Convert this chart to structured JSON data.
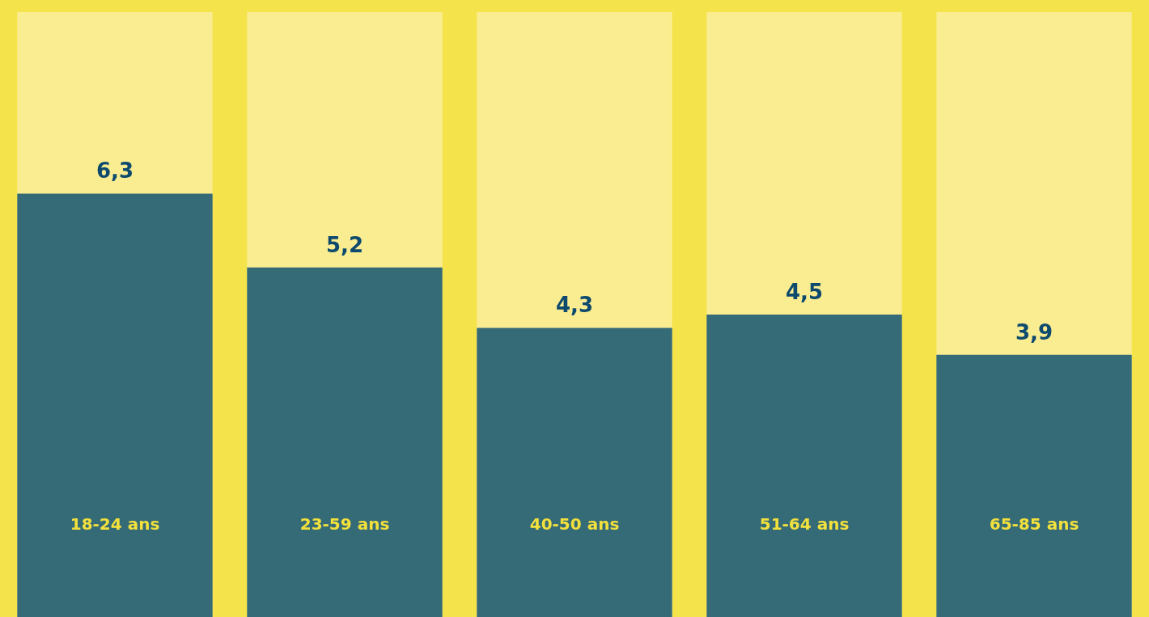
{
  "chart_data": {
    "type": "bar",
    "categories": [
      "18-24 ans",
      "23-59 ans",
      "40-50 ans",
      "51-64 ans",
      "65-85 ans"
    ],
    "values": [
      6.3,
      5.2,
      4.3,
      4.5,
      3.9
    ],
    "value_labels": [
      "6,3",
      "5,2",
      "4,3",
      "4,5",
      "3,9"
    ],
    "color": "#356a77",
    "bands": [
      {
        "axis": "x",
        "from": "18-24 ans",
        "to": "18-24 ans",
        "color": "#faed91"
      },
      {
        "axis": "x",
        "from": "23-59 ans",
        "to": "23-59 ans",
        "color": "#faed91"
      },
      {
        "axis": "x",
        "from": "40-50 ans",
        "to": "40-50 ans",
        "color": "#faed91"
      },
      {
        "axis": "x",
        "from": "51-64 ans",
        "to": "51-64 ans",
        "color": "#faed91"
      },
      {
        "axis": "x",
        "from": "65-85 ans",
        "to": "65-85 ans",
        "color": "#faed91"
      }
    ]
  }
}
